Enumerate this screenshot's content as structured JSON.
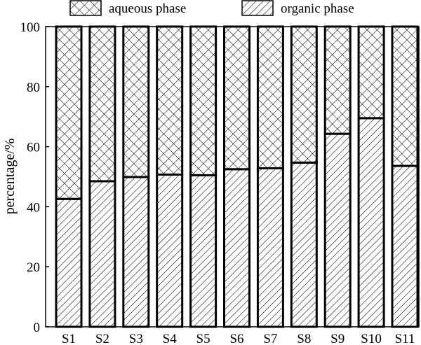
{
  "chart_data": {
    "type": "bar",
    "stacked": true,
    "categories": [
      "S1",
      "S2",
      "S3",
      "S4",
      "S5",
      "S6",
      "S7",
      "S8",
      "S9",
      "S10",
      "S11"
    ],
    "series": [
      {
        "name": "organic phase",
        "pattern": "diagonal-hatch",
        "values": [
          42.6,
          48.5,
          49.9,
          50.7,
          50.5,
          52.5,
          52.8,
          54.7,
          64.3,
          69.5,
          53.6
        ]
      },
      {
        "name": "aqueous phase",
        "pattern": "cross-hatch",
        "values": [
          57.4,
          51.5,
          50.1,
          49.3,
          49.5,
          47.5,
          47.2,
          45.3,
          35.7,
          30.5,
          46.4
        ]
      }
    ],
    "xlabel": "",
    "ylabel": "percentage/%",
    "ylim": [
      0,
      100
    ],
    "yticks": [
      0,
      20,
      40,
      60,
      80,
      100
    ],
    "legend_position": "top",
    "legend_order": [
      "aqueous phase",
      "organic phase"
    ],
    "grid": false,
    "colors": {
      "stroke": "#000000",
      "background": "#ffffff"
    }
  }
}
